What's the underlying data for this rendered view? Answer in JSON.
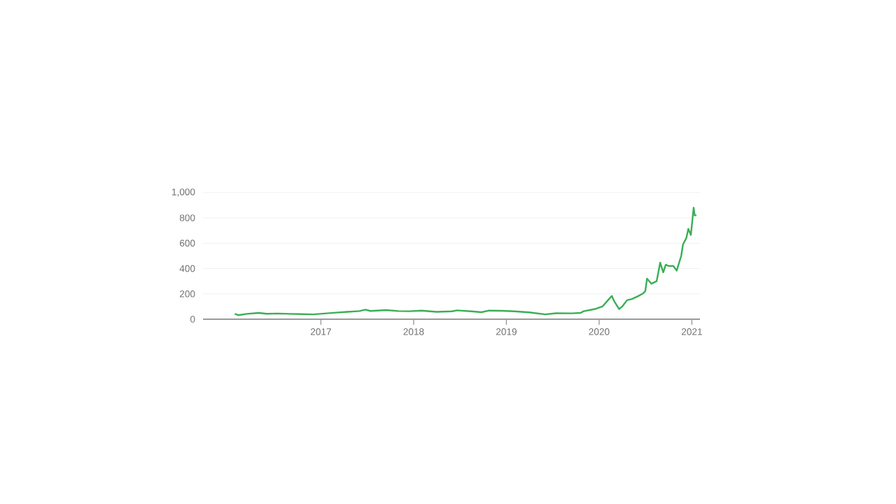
{
  "chart_data": {
    "type": "line",
    "x": [
      "2016-01-27",
      "2016-02-10",
      "2016-03-15",
      "2016-05-01",
      "2016-06-01",
      "2016-07-15",
      "2016-09-01",
      "2016-10-15",
      "2016-12-01",
      "2017-01-15",
      "2017-03-01",
      "2017-04-15",
      "2017-06-01",
      "2017-06-25",
      "2017-07-15",
      "2017-09-15",
      "2017-11-01",
      "2017-12-15",
      "2018-02-01",
      "2018-04-01",
      "2018-06-01",
      "2018-06-20",
      "2018-08-15",
      "2018-09-25",
      "2018-10-25",
      "2018-12-15",
      "2019-02-01",
      "2019-04-01",
      "2019-06-03",
      "2019-07-15",
      "2019-09-15",
      "2019-10-20",
      "2019-11-01",
      "2019-12-15",
      "2020-01-15",
      "2020-02-05",
      "2020-02-20",
      "2020-03-01",
      "2020-03-20",
      "2020-04-01",
      "2020-04-20",
      "2020-05-10",
      "2020-06-01",
      "2020-06-20",
      "2020-07-01",
      "2020-07-08",
      "2020-07-25",
      "2020-08-15",
      "2020-08-29",
      "2020-09-10",
      "2020-09-20",
      "2020-10-01",
      "2020-10-20",
      "2020-11-02",
      "2020-11-20",
      "2020-11-27",
      "2020-12-10",
      "2020-12-18",
      "2020-12-28",
      "2021-01-08",
      "2021-01-12",
      "2021-01-19"
    ],
    "series": [
      {
        "color": "#3aae55",
        "values": [
          42,
          32,
          42,
          50,
          43,
          45,
          42,
          40,
          38,
          45,
          52,
          58,
          64,
          75,
          65,
          72,
          64,
          63,
          68,
          58,
          62,
          70,
          62,
          55,
          68,
          66,
          62,
          54,
          38,
          47,
          46,
          50,
          63,
          80,
          102,
          150,
          184,
          140,
          80,
          100,
          150,
          160,
          180,
          200,
          220,
          320,
          280,
          300,
          447,
          370,
          430,
          420,
          420,
          383,
          500,
          590,
          640,
          713,
          665,
          880,
          820,
          820
        ]
      }
    ],
    "xlim": [
      "2015-09-24",
      "2021-02-02"
    ],
    "xticks": [
      "2017",
      "2018",
      "2019",
      "2020",
      "2021"
    ],
    "ylim": [
      0,
      1000
    ],
    "yticks": [
      0,
      200,
      400,
      600,
      800,
      {
        "value": 1000,
        "label": "1,000"
      }
    ],
    "grid": "y",
    "legend": false,
    "marker": "none",
    "line_style": "solid"
  }
}
